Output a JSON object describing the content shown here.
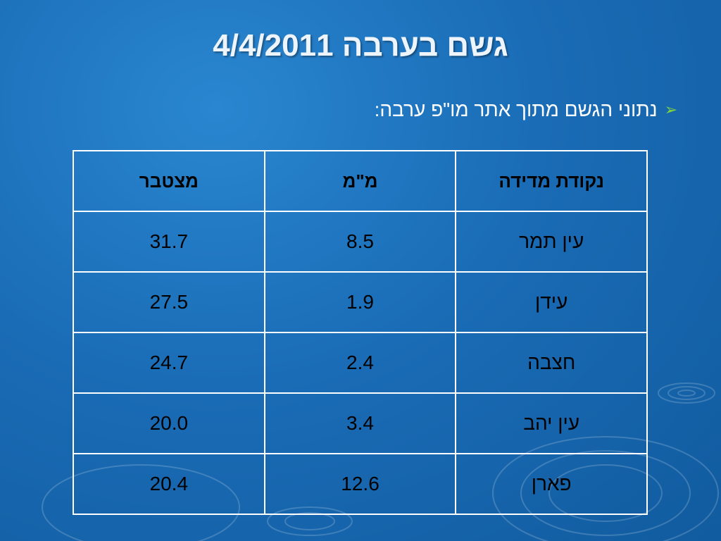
{
  "header": {
    "title": "גשם בערבה 4/4/2011"
  },
  "bullets": [
    "נתוני הגשם מתוך אתר מו\"פ ערבה:"
  ],
  "table": {
    "columns": [
      "נקודת מדידה",
      "מ\"מ",
      "מצטבר"
    ],
    "rows": [
      [
        "עין תמר",
        "8.5",
        "31.7"
      ],
      [
        "עידן",
        "1.9",
        "27.5"
      ],
      [
        "חצבה",
        "2.4",
        "24.7"
      ],
      [
        "עין יהב",
        "3.4",
        "20.0"
      ],
      [
        "פארן",
        "12.6",
        "20.4"
      ]
    ]
  }
}
